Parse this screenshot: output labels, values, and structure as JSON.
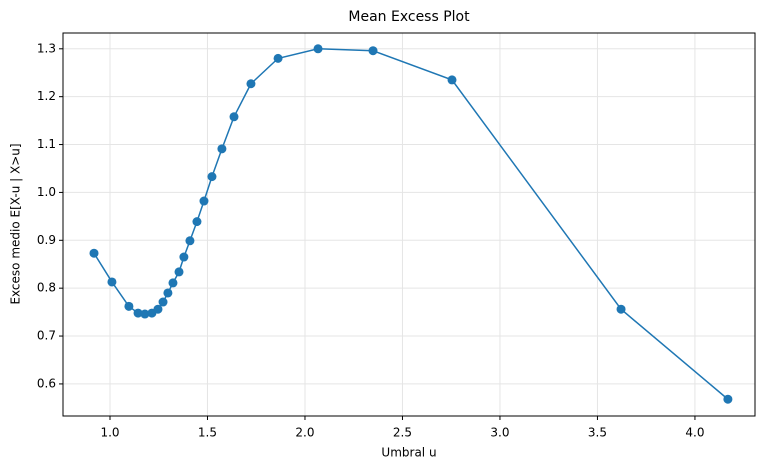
{
  "chart_data": {
    "type": "line",
    "title": "Mean Excess Plot",
    "x_label": "Umbral u",
    "y_label": "Exceso medio E[X-u | X>u]",
    "x": [
      0.918,
      1.01,
      1.097,
      1.144,
      1.179,
      1.215,
      1.246,
      1.272,
      1.297,
      1.323,
      1.354,
      1.379,
      1.41,
      1.446,
      1.482,
      1.523,
      1.574,
      1.636,
      1.723,
      1.862,
      2.067,
      2.349,
      2.754,
      3.621,
      4.169
    ],
    "series": [
      {
        "name": "Exceso medio",
        "color": "#1f77b4",
        "values": [
          0.873,
          0.813,
          0.762,
          0.748,
          0.746,
          0.748,
          0.756,
          0.771,
          0.79,
          0.811,
          0.834,
          0.865,
          0.899,
          0.939,
          0.982,
          1.033,
          1.091,
          1.158,
          1.227,
          1.28,
          1.3,
          1.296,
          1.235,
          0.756,
          0.568
        ]
      }
    ],
    "xlim": [
      0.759,
      4.308
    ],
    "ylim": [
      0.533,
      1.333
    ],
    "xticks": [
      {
        "value": 1,
        "label": "1.0"
      },
      1.5,
      {
        "value": 2,
        "label": "2.0"
      },
      2.5,
      {
        "value": 3,
        "label": "3.0"
      },
      3.5,
      {
        "value": 4,
        "label": "4.0"
      }
    ],
    "yticks": [
      0.6,
      0.7,
      0.8,
      0.9,
      {
        "value": 1,
        "label": "1.0"
      },
      1.1,
      1.2,
      1.3
    ],
    "grid": true
  }
}
